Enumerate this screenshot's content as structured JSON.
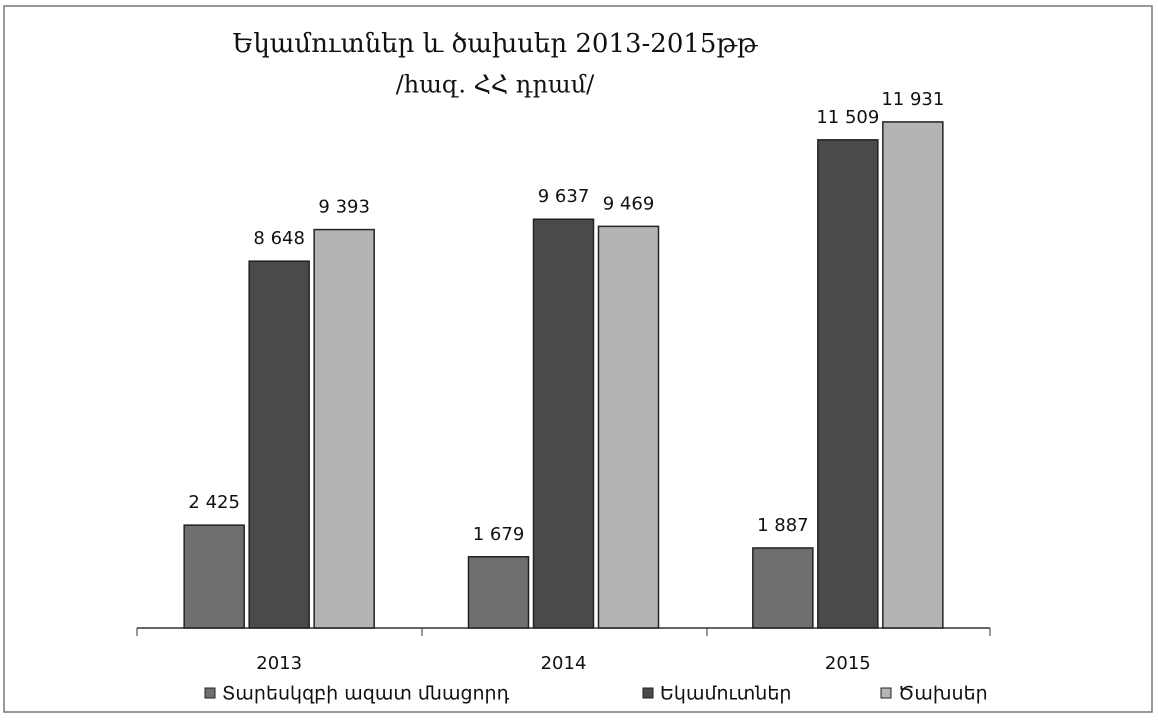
{
  "chart_data": {
    "type": "bar",
    "title": "Եկամուտներ և ծախսեր 2013-2015թթ",
    "subtitle": "/հազ. ՀՀ դրամ/",
    "categories": [
      "2013",
      "2014",
      "2015"
    ],
    "series": [
      {
        "name": "Տարեսկզբի ազատ մնացորդ",
        "color": "#6f6f6f",
        "values": [
          2425,
          1679,
          1887
        ],
        "value_labels": [
          "2 425",
          "1 679",
          "1 887"
        ]
      },
      {
        "name": "Եկամուտներ",
        "color": "#4a4a4a",
        "values": [
          8648,
          9637,
          11509
        ],
        "value_labels": [
          "8 648",
          "9 637",
          "11 509"
        ]
      },
      {
        "name": "Ծախսեր",
        "color": "#b4b4b4",
        "values": [
          9393,
          9469,
          11931
        ],
        "value_labels": [
          "9 393",
          "9 469",
          "11 931"
        ]
      }
    ],
    "ylim": [
      0,
      12000
    ],
    "legend": "bottom"
  }
}
